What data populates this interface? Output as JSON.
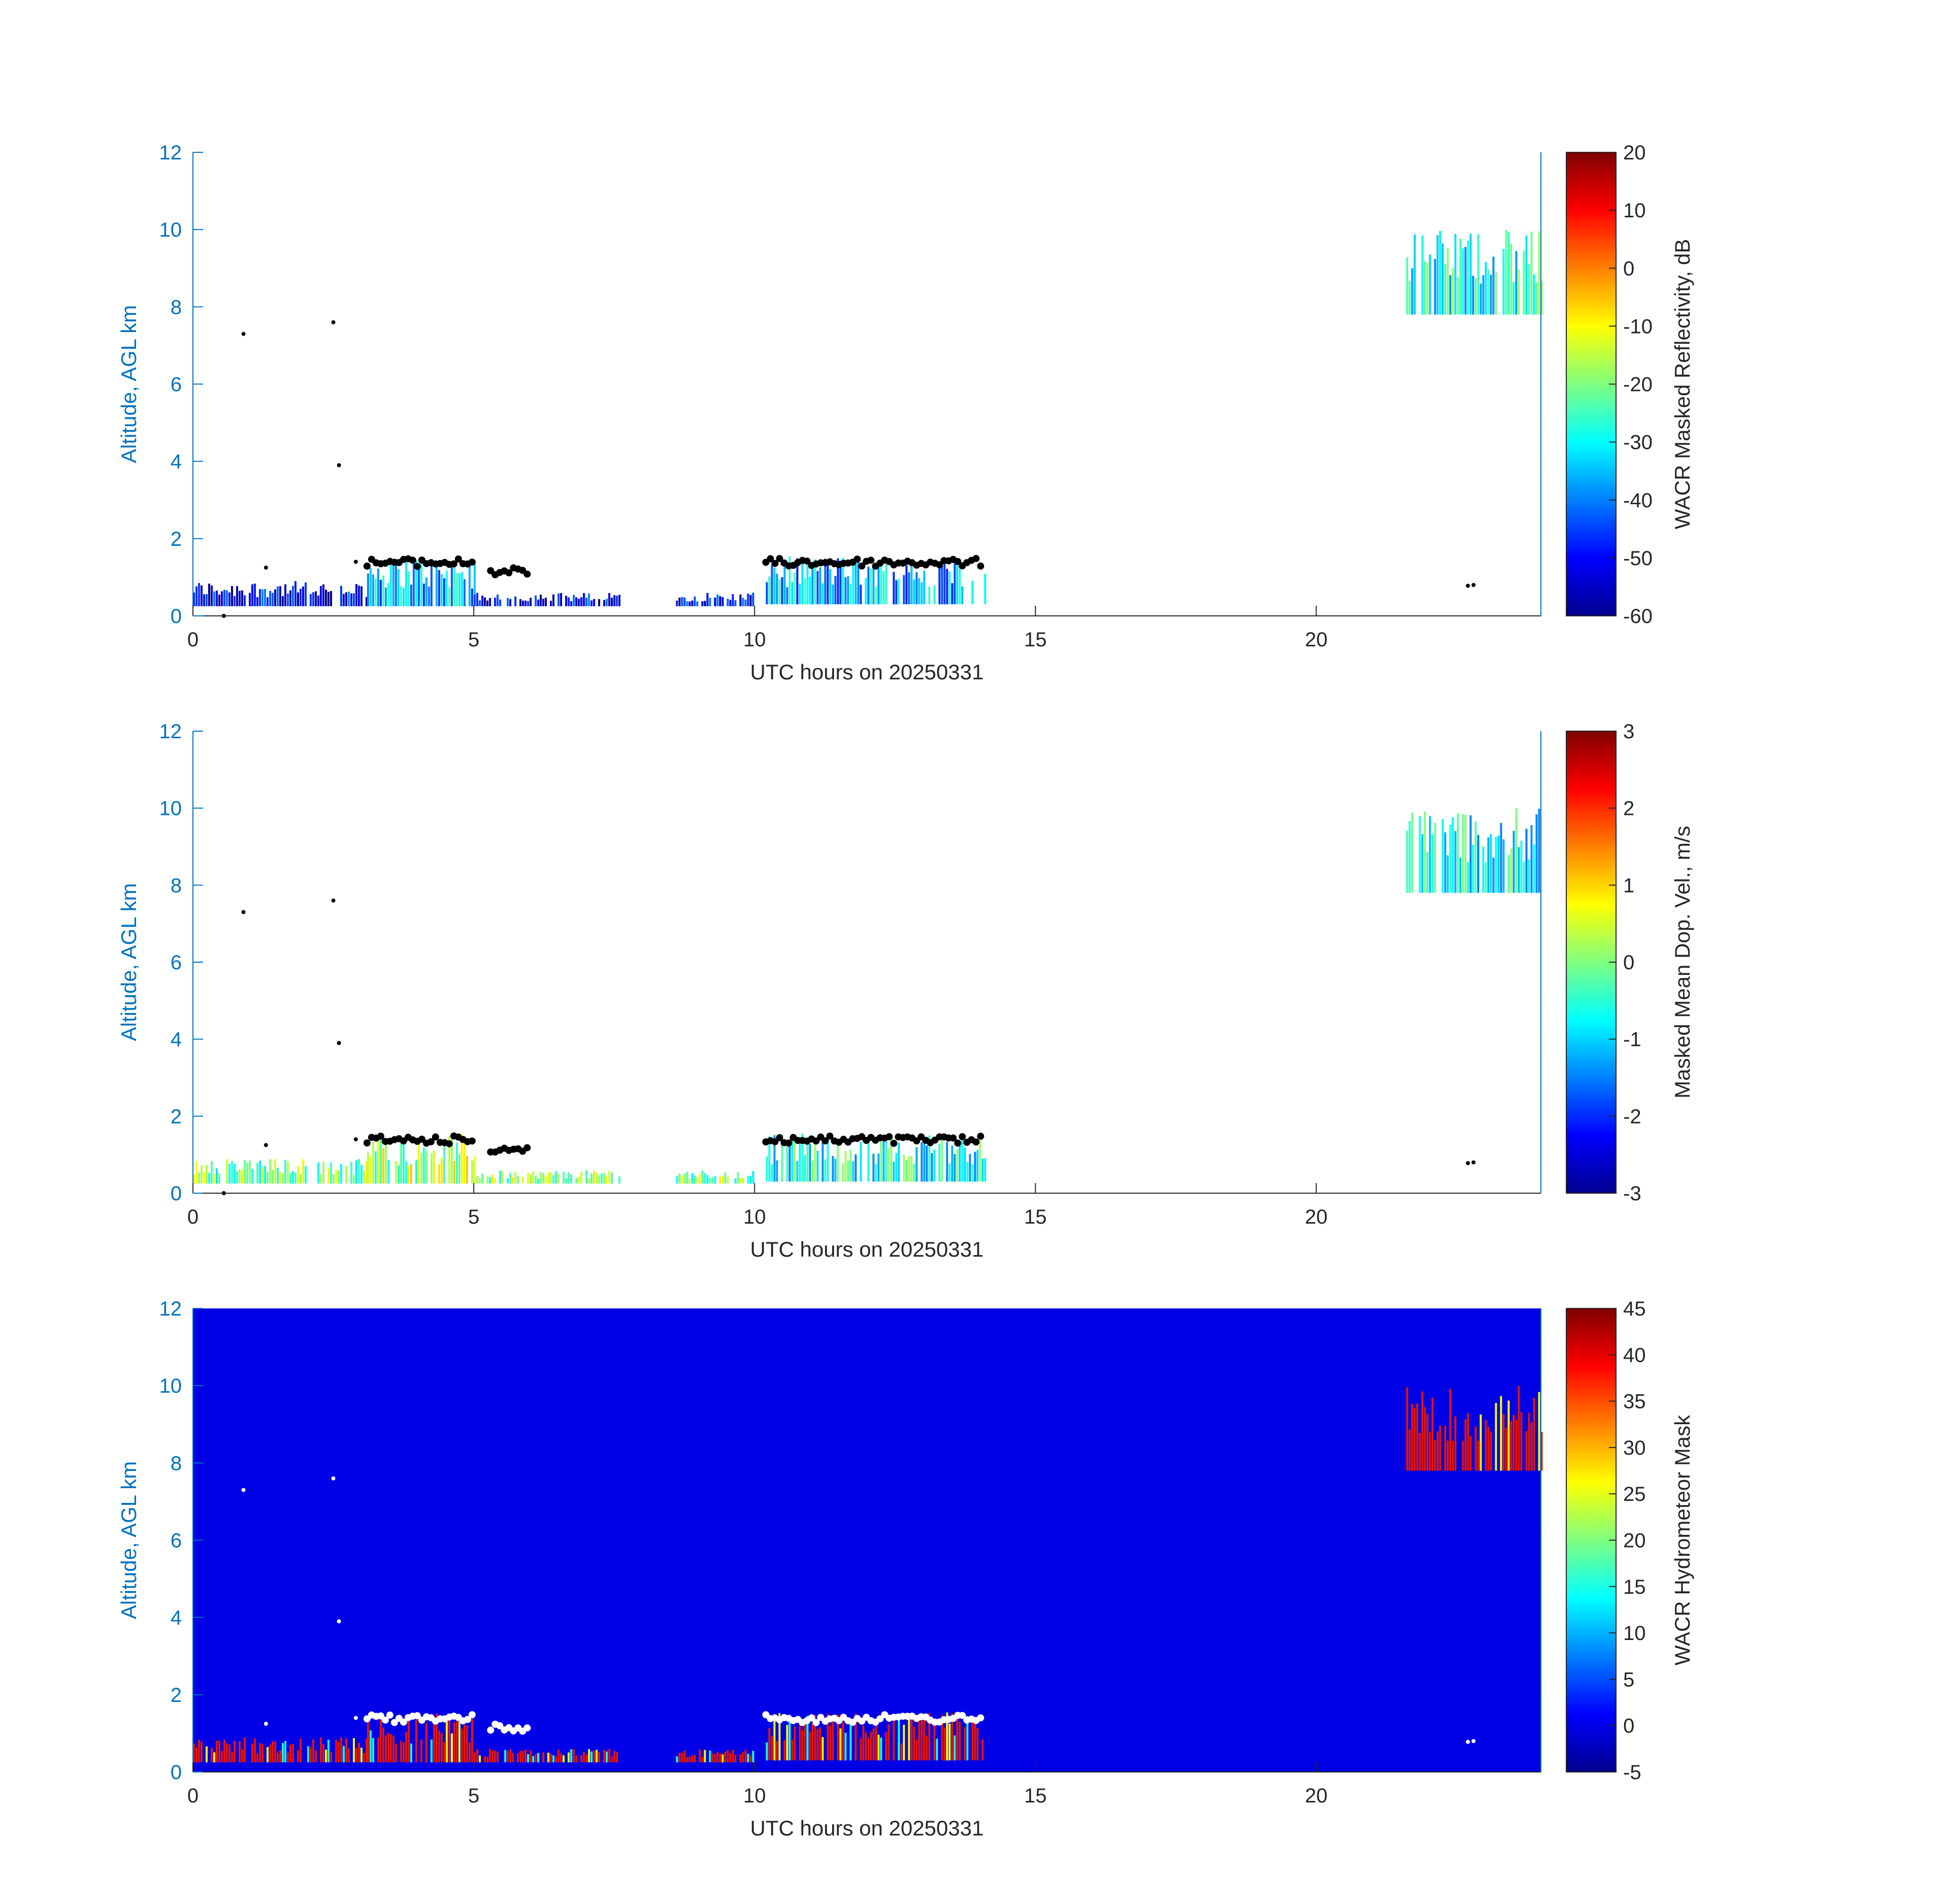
{
  "colors": {
    "left_axis": "#0072BD",
    "bottom_axis": "#262626",
    "mask_background": "#0000E6",
    "mask_red": "#E61400",
    "cloudbase_black": "#000000",
    "cloudbase_white": "#FFFFFF"
  },
  "chart_data": [
    {
      "type": "heatmap",
      "name": "reflectivity",
      "xlabel": "UTC hours on 20250331",
      "ylabel": "Altitude, AGL km",
      "xlim": [
        0,
        24
      ],
      "ylim": [
        0,
        12
      ],
      "xticks": [
        "0",
        "5",
        "10",
        "15",
        "20"
      ],
      "yticks": [
        "0",
        "2",
        "4",
        "6",
        "8",
        "10",
        "12"
      ],
      "colorbar": {
        "label": "WACR Masked Reflectivity, dB",
        "colormap": "jet",
        "range": [
          -60,
          20
        ],
        "ticks": [
          "-60",
          "-50",
          "-40",
          "-30",
          "-20",
          "-10",
          "0",
          "10",
          "20"
        ]
      },
      "regions": [
        {
          "x": [
            0,
            3.1
          ],
          "y": [
            0.25,
            0.9
          ],
          "level": 0.12
        },
        {
          "x": [
            3.1,
            5.0
          ],
          "y": [
            0.25,
            1.55
          ],
          "level": 0.3
        },
        {
          "x": [
            5.0,
            7.6
          ],
          "y": [
            0.25,
            0.6
          ],
          "level": 0.12
        },
        {
          "x": [
            8.6,
            10.0
          ],
          "y": [
            0.25,
            0.6
          ],
          "level": 0.12
        },
        {
          "x": [
            10.2,
            14.1
          ],
          "y": [
            0.3,
            1.55
          ],
          "level": 0.3
        },
        {
          "x": [
            21.6,
            24.0
          ],
          "y": [
            7.8,
            10.0
          ],
          "level": 0.4
        }
      ],
      "cloudbase": [
        {
          "x": [
            3.1,
            5.0
          ],
          "y": 1.38
        },
        {
          "x": [
            5.3,
            6.0
          ],
          "y": 1.15
        },
        {
          "x": [
            10.2,
            14.1
          ],
          "y": 1.38
        }
      ],
      "points": [
        {
          "x": 0.9,
          "y": 7.3
        },
        {
          "x": 2.5,
          "y": 7.6
        },
        {
          "x": 2.6,
          "y": 3.9
        },
        {
          "x": 1.3,
          "y": 1.25
        },
        {
          "x": 2.9,
          "y": 1.4
        },
        {
          "x": 0.55,
          "y": 0.0
        },
        {
          "x": 22.7,
          "y": 0.78
        },
        {
          "x": 22.8,
          "y": 0.8
        }
      ]
    },
    {
      "type": "heatmap",
      "name": "velocity",
      "xlabel": "UTC hours on 20250331",
      "ylabel": "Altitude, AGL km",
      "xlim": [
        0,
        24
      ],
      "ylim": [
        0,
        12
      ],
      "xticks": [
        "0",
        "5",
        "10",
        "15",
        "20"
      ],
      "yticks": [
        "0",
        "2",
        "4",
        "6",
        "8",
        "10",
        "12"
      ],
      "colorbar": {
        "label": "Masked Mean Dop. Vel., m/s",
        "colormap": "jet",
        "range": [
          -3,
          3
        ],
        "ticks": [
          "-3",
          "-2",
          "-1",
          "0",
          "1",
          "2",
          "3"
        ]
      },
      "regions": [
        {
          "x": [
            0,
            3.1
          ],
          "y": [
            0.25,
            0.9
          ],
          "level": 0.5
        },
        {
          "x": [
            3.1,
            5.0
          ],
          "y": [
            0.25,
            1.55
          ],
          "level": 0.55
        },
        {
          "x": [
            5.0,
            7.6
          ],
          "y": [
            0.25,
            0.6
          ],
          "level": 0.5
        },
        {
          "x": [
            8.6,
            10.0
          ],
          "y": [
            0.25,
            0.6
          ],
          "level": 0.5
        },
        {
          "x": [
            10.2,
            14.1
          ],
          "y": [
            0.3,
            1.55
          ],
          "level": 0.4
        },
        {
          "x": [
            21.6,
            24.0
          ],
          "y": [
            7.8,
            10.0
          ],
          "level": 0.38
        }
      ],
      "cloudbase": [
        {
          "x": [
            3.1,
            5.0
          ],
          "y": 1.38
        },
        {
          "x": [
            5.3,
            6.0
          ],
          "y": 1.15
        },
        {
          "x": [
            10.2,
            14.1
          ],
          "y": 1.38
        }
      ],
      "points": [
        {
          "x": 0.9,
          "y": 7.3
        },
        {
          "x": 2.5,
          "y": 7.6
        },
        {
          "x": 2.6,
          "y": 3.9
        },
        {
          "x": 1.3,
          "y": 1.25
        },
        {
          "x": 2.9,
          "y": 1.4
        },
        {
          "x": 0.55,
          "y": 0.0
        },
        {
          "x": 22.7,
          "y": 0.78
        },
        {
          "x": 22.8,
          "y": 0.8
        }
      ]
    },
    {
      "type": "heatmap",
      "name": "mask",
      "xlabel": "UTC hours on 20250331",
      "ylabel": "Altitude, AGL km",
      "xlim": [
        0,
        24
      ],
      "ylim": [
        0,
        12
      ],
      "xticks": [
        "0",
        "5",
        "10",
        "15",
        "20"
      ],
      "yticks": [
        "0",
        "2",
        "4",
        "6",
        "8",
        "10",
        "12"
      ],
      "colorbar": {
        "label": "WACR Hydrometeor Mask",
        "colormap": "jet",
        "range": [
          -5,
          45
        ],
        "ticks": [
          "-5",
          "0",
          "5",
          "10",
          "15",
          "20",
          "25",
          "30",
          "35",
          "40",
          "45"
        ]
      },
      "background_value": 0,
      "data_value": 40,
      "regions": [
        {
          "x": [
            0,
            3.1
          ],
          "y": [
            0.25,
            0.9
          ],
          "level": 0.9
        },
        {
          "x": [
            3.1,
            5.0
          ],
          "y": [
            0.25,
            1.55
          ],
          "level": 0.9
        },
        {
          "x": [
            5.0,
            7.6
          ],
          "y": [
            0.25,
            0.6
          ],
          "level": 0.9
        },
        {
          "x": [
            8.6,
            10.0
          ],
          "y": [
            0.25,
            0.6
          ],
          "level": 0.9
        },
        {
          "x": [
            10.2,
            14.1
          ],
          "y": [
            0.3,
            1.55
          ],
          "level": 0.9
        },
        {
          "x": [
            21.6,
            24.0
          ],
          "y": [
            7.8,
            10.0
          ],
          "level": 0.9
        }
      ],
      "cloudbase": [
        {
          "x": [
            3.1,
            5.0
          ],
          "y": 1.38
        },
        {
          "x": [
            5.3,
            6.0
          ],
          "y": 1.15
        },
        {
          "x": [
            10.2,
            14.1
          ],
          "y": 1.38
        }
      ],
      "points": [
        {
          "x": 0.9,
          "y": 7.3
        },
        {
          "x": 2.5,
          "y": 7.6
        },
        {
          "x": 2.6,
          "y": 3.9
        },
        {
          "x": 1.3,
          "y": 1.25
        },
        {
          "x": 2.9,
          "y": 1.4
        },
        {
          "x": 22.7,
          "y": 0.78
        },
        {
          "x": 22.8,
          "y": 0.8
        }
      ]
    }
  ]
}
